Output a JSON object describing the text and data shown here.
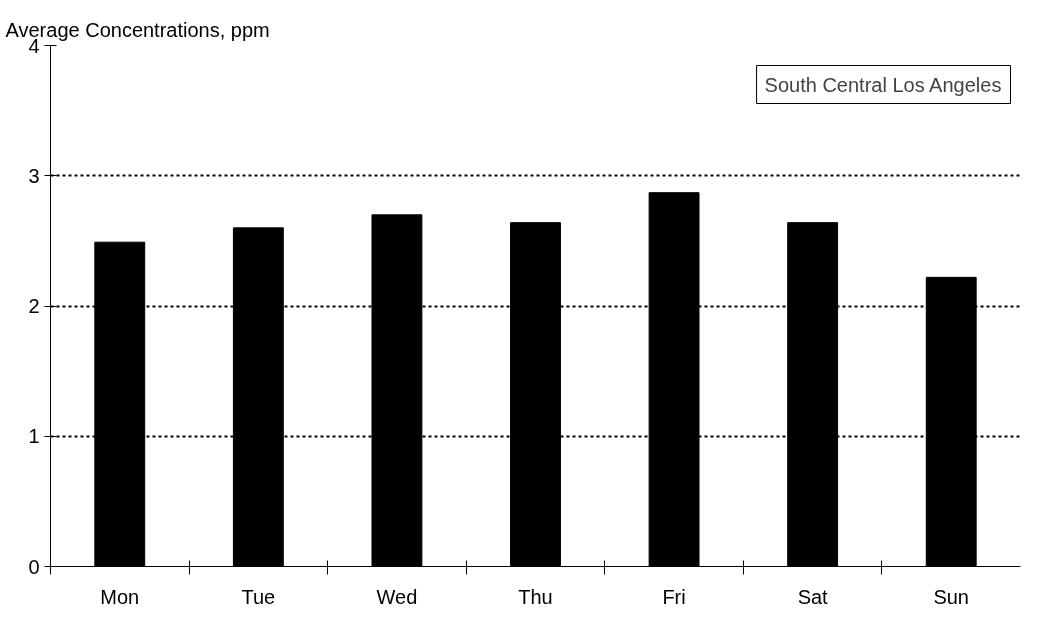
{
  "chart_data": {
    "type": "bar",
    "title": "South Central Los Angeles",
    "ylabel": "Average Concentrations, ppm",
    "categories": [
      "Mon",
      "Tue",
      "Wed",
      "Thu",
      "Fri",
      "Sat",
      "Sun"
    ],
    "values": [
      2.49,
      2.6,
      2.7,
      2.64,
      2.87,
      2.64,
      2.22
    ],
    "color": "#000000",
    "ylim": [
      0,
      4
    ],
    "yticks": [
      0,
      1,
      2,
      3,
      4
    ],
    "grid": "y"
  }
}
